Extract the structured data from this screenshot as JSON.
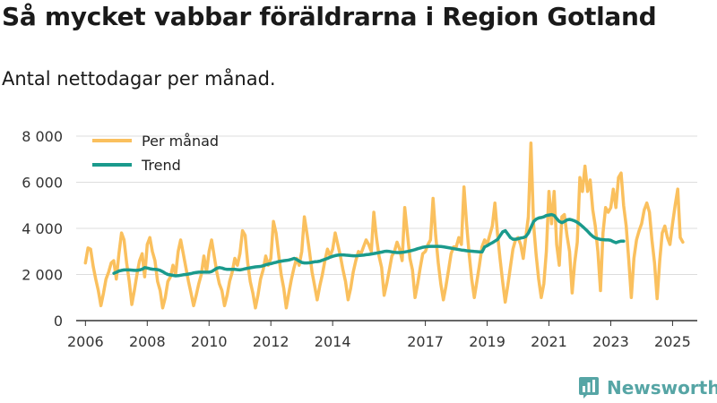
{
  "header": {
    "title": "Så mycket vabbar föräldrarna i Region Gotland",
    "subtitle": "Antal nettodagar per månad."
  },
  "brand": {
    "name": "Newsworthy"
  },
  "colors": {
    "per_month": "#fac05e",
    "trend": "#1a9a8c",
    "grid": "#dddddd",
    "brand": "#56a5a5"
  },
  "chart_data": {
    "type": "line",
    "title": "Så mycket vabbar föräldrarna i Region Gotland",
    "subtitle": "Antal nettodagar per månad.",
    "xlabel": "",
    "ylabel": "",
    "xlim": [
      2005.7,
      2025.8
    ],
    "ylim": [
      0,
      8000
    ],
    "y_ticks": [
      0,
      2000,
      4000,
      6000,
      8000
    ],
    "y_tick_labels": [
      "0",
      "2 000",
      "4 000",
      "6 000",
      "8 000"
    ],
    "x_ticks": [
      2006,
      2008,
      2010,
      2012,
      2014,
      2017,
      2019,
      2021,
      2023,
      2025
    ],
    "x_tick_labels": [
      "2006",
      "2008",
      "2010",
      "2012",
      "2014",
      "2017",
      "2019",
      "2021",
      "2023",
      "2025"
    ],
    "grid": true,
    "legend_position": "top-left",
    "series": [
      {
        "name": "Per månad",
        "start": 2006.0,
        "step_months": 1,
        "values": [
          2500,
          3150,
          3100,
          2350,
          1800,
          1300,
          650,
          1200,
          1800,
          2100,
          2500,
          2600,
          1800,
          2900,
          3800,
          3500,
          2500,
          1700,
          700,
          1300,
          2000,
          2600,
          2900,
          1900,
          3300,
          3600,
          3000,
          2600,
          1700,
          1300,
          550,
          1000,
          1700,
          1900,
          2400,
          2000,
          3000,
          3500,
          2900,
          2300,
          1700,
          1200,
          650,
          1100,
          1600,
          2000,
          2800,
          2100,
          3000,
          3500,
          2800,
          2100,
          1600,
          1300,
          650,
          1100,
          1700,
          2100,
          2700,
          2400,
          2900,
          3900,
          3700,
          2500,
          1700,
          1200,
          550,
          1100,
          1800,
          2200,
          2800,
          2400,
          2700,
          4300,
          3800,
          2900,
          2000,
          1400,
          550,
          1200,
          1800,
          2300,
          2700,
          2400,
          3000,
          4500,
          3800,
          3000,
          2100,
          1500,
          900,
          1500,
          2000,
          2600,
          3100,
          2800,
          3100,
          3800,
          3300,
          2800,
          2200,
          1700,
          900,
          1400,
          2100,
          2600,
          3000,
          2900,
          3200,
          3500,
          3300,
          3000,
          4700,
          3600,
          2800,
          2300,
          1100,
          1600,
          2200,
          2800,
          3000,
          3400,
          3100,
          2600,
          4900,
          3800,
          2700,
          2200,
          1000,
          1600,
          2300,
          2900,
          3000,
          3300,
          3500,
          5300,
          3700,
          2500,
          1600,
          900,
          1500,
          2200,
          2900,
          3200,
          3200,
          3600,
          3300,
          5800,
          4200,
          2900,
          1800,
          1000,
          1700,
          2400,
          3200,
          3500,
          3300,
          3700,
          4100,
          5100,
          3800,
          2700,
          1700,
          800,
          1500,
          2300,
          3100,
          3500,
          3600,
          3300,
          2700,
          3600,
          4500,
          7700,
          4200,
          2900,
          1800,
          1000,
          1600,
          3000,
          5600,
          4200,
          5600,
          3300,
          2400,
          4500,
          4600,
          3700,
          3000,
          1200,
          2500,
          3400,
          6200,
          5600,
          6700,
          5600,
          6100,
          4800,
          4100,
          3000,
          1300,
          3800,
          4900,
          4700,
          4900,
          5700,
          4900,
          6200,
          6400,
          5000,
          4100,
          2600,
          1000,
          2700,
          3500,
          3900,
          4200,
          4800,
          5100,
          4700,
          3500,
          2500,
          950,
          2600,
          3800,
          4100,
          3600,
          3300,
          4200,
          5000,
          5700,
          3600,
          3400
        ]
      },
      {
        "name": "Trend",
        "start": 2006.92,
        "step_months": 1,
        "values": [
          2050,
          2100,
          2150,
          2180,
          2200,
          2200,
          2200,
          2190,
          2180,
          2180,
          2200,
          2230,
          2300,
          2280,
          2250,
          2230,
          2220,
          2210,
          2180,
          2120,
          2050,
          2000,
          1980,
          1960,
          1940,
          1950,
          1970,
          1990,
          2000,
          2020,
          2040,
          2070,
          2090,
          2100,
          2100,
          2100,
          2100,
          2100,
          2130,
          2200,
          2270,
          2300,
          2280,
          2240,
          2220,
          2220,
          2220,
          2220,
          2210,
          2200,
          2220,
          2250,
          2270,
          2290,
          2310,
          2330,
          2340,
          2350,
          2380,
          2420,
          2450,
          2470,
          2500,
          2530,
          2560,
          2580,
          2600,
          2610,
          2630,
          2660,
          2700,
          2650,
          2580,
          2520,
          2500,
          2500,
          2510,
          2530,
          2550,
          2560,
          2580,
          2620,
          2660,
          2700,
          2750,
          2790,
          2820,
          2840,
          2850,
          2850,
          2840,
          2830,
          2820,
          2810,
          2810,
          2820,
          2830,
          2840,
          2860,
          2870,
          2890,
          2910,
          2930,
          2950,
          2970,
          3000,
          3010,
          3000,
          2980,
          2960,
          2950,
          2950,
          2960,
          2980,
          3000,
          3020,
          3050,
          3080,
          3120,
          3150,
          3180,
          3200,
          3210,
          3220,
          3220,
          3220,
          3220,
          3210,
          3200,
          3180,
          3160,
          3140,
          3120,
          3100,
          3080,
          3060,
          3050,
          3030,
          3020,
          3010,
          3000,
          2990,
          2980,
          2980,
          3200,
          3250,
          3320,
          3380,
          3450,
          3520,
          3680,
          3850,
          3900,
          3750,
          3600,
          3530,
          3530,
          3550,
          3580,
          3600,
          3650,
          3800,
          4050,
          4300,
          4400,
          4450,
          4470,
          4500,
          4560,
          4580,
          4600,
          4560,
          4420,
          4300,
          4250,
          4300,
          4370,
          4390,
          4360,
          4320,
          4260,
          4180,
          4080,
          3980,
          3870,
          3750,
          3650,
          3580,
          3550,
          3520,
          3510,
          3500,
          3500,
          3480,
          3420,
          3380,
          3420,
          3450,
          3450
        ]
      }
    ]
  }
}
